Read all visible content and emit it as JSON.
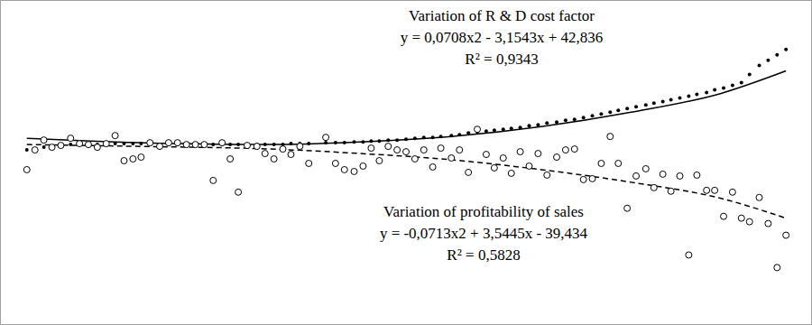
{
  "chart_data": {
    "type": "scatter",
    "xlim": [
      0,
      100
    ],
    "ylim": [
      0,
      360
    ],
    "tick_labels": false,
    "grid": false,
    "series": [
      {
        "type": "scatter",
        "marker": "dot",
        "color": "#000000",
        "x": [
          3.2,
          4.2,
          5.3,
          6.3,
          7.4,
          8.6,
          9.7,
          10.8,
          11.9,
          13,
          14.1,
          15.2,
          16.3,
          17.3,
          18.4,
          19.6,
          20.7,
          21.8,
          22.9,
          24,
          25.1,
          26.2,
          27.3,
          28.3,
          29.3,
          30.4,
          31.6,
          32.6,
          33.7,
          34.8,
          35.8,
          36.9,
          38,
          40.1,
          41.3,
          42.4,
          43.6,
          44.7,
          45.7,
          46.7,
          47.8,
          48.9,
          50,
          51.1,
          52.2,
          53.3,
          54.3,
          55.6,
          56.6,
          57.7,
          58.8,
          59.9,
          60.9,
          62,
          63,
          64.1,
          65.2,
          66.3,
          67.4,
          68.6,
          69.7,
          70.8,
          71.9,
          73,
          74.1,
          75.2,
          76.2,
          77.3,
          78.4,
          79.6,
          80.6,
          81.7,
          82.7,
          83.8,
          84.9,
          85.9,
          87.1,
          88.1,
          89.2,
          90.3,
          91.4,
          92.4,
          93.6,
          94.7,
          95.8,
          96.9
        ],
        "values": [
          194,
          195,
          197,
          198,
          199,
          200,
          200,
          200,
          200,
          201,
          201,
          201,
          201,
          201,
          201,
          200,
          200,
          200,
          200,
          200,
          200,
          200,
          200,
          200,
          200,
          200,
          200,
          200,
          200,
          200,
          201,
          201,
          201,
          202,
          202,
          202,
          203,
          203,
          204,
          204,
          205,
          205,
          206,
          207,
          208,
          208,
          209,
          210,
          211,
          213,
          214,
          215,
          216,
          217,
          218,
          219,
          221,
          222,
          224,
          225,
          227,
          228,
          230,
          232,
          234,
          236,
          238,
          240,
          242,
          244,
          246,
          248,
          250,
          252,
          254,
          256,
          258,
          261,
          263,
          266,
          269,
          278,
          288,
          294,
          300,
          306
        ]
      },
      {
        "type": "scatter",
        "marker": "circle",
        "color": "#000000",
        "x": [
          3.2,
          4.2,
          5.3,
          6.3,
          7.4,
          8.6,
          9.7,
          10.8,
          11.9,
          13,
          14.1,
          15.2,
          16.3,
          17.3,
          18.4,
          19.6,
          20.7,
          21.8,
          22.9,
          24,
          25.1,
          26.2,
          27.3,
          28.3,
          29.3,
          30.4,
          31.6,
          32.6,
          33.7,
          34.8,
          35.8,
          36.9,
          38,
          40.1,
          41.3,
          42.4,
          43.6,
          44.7,
          45.7,
          46.7,
          47.8,
          48.9,
          50,
          51.1,
          52.2,
          53.3,
          54.3,
          55.6,
          56.6,
          57.7,
          58.8,
          59.9,
          60.9,
          62,
          63,
          64.1,
          65.2,
          66.3,
          67.4,
          68.6,
          69.7,
          70.8,
          71.9,
          73,
          74.1,
          75.2,
          76.2,
          77.3,
          78.4,
          79.6,
          80.6,
          81.7,
          82.7,
          83.8,
          84.9,
          85.9,
          87.1,
          88.1,
          89.2,
          90.3,
          91.4,
          92.4,
          93.6,
          94.7,
          95.8,
          96.9
        ],
        "values": [
          172,
          194,
          205,
          197,
          199,
          207,
          201,
          200,
          197,
          201,
          210,
          182,
          184,
          186,
          202,
          198,
          202,
          202,
          200,
          200,
          200,
          160,
          202,
          184,
          147,
          199,
          198,
          190,
          184,
          195,
          189,
          198,
          179,
          208,
          179,
          172,
          170,
          176,
          196,
          182,
          198,
          194,
          192,
          184,
          194,
          175,
          196,
          185,
          194,
          169,
          217,
          189,
          174,
          185,
          168,
          192,
          176,
          190,
          166,
          186,
          194,
          195,
          161,
          162,
          179,
          209,
          179,
          129,
          165,
          173,
          152,
          167,
          148,
          165,
          77,
          166,
          149,
          149,
          120,
          147,
          118,
          114,
          141,
          112,
          63,
          99
        ]
      },
      {
        "type": "line",
        "line_style": "solid",
        "color": "#000000",
        "x": [
          3.2,
          11.1,
          22.2,
          33.3,
          44.4,
          55.6,
          66.7,
          77.8,
          88.9,
          96.9
        ],
        "values": [
          207,
          204,
          201,
          200,
          203,
          209,
          220,
          236,
          257,
          282
        ]
      },
      {
        "type": "line",
        "line_style": "dashed",
        "color": "#000000",
        "x": [
          3.2,
          16.7,
          33.3,
          44.4,
          55.6,
          66.7,
          77.8,
          88.9,
          96.9
        ],
        "values": [
          200,
          198,
          195,
          190,
          183,
          172,
          158,
          140,
          118
        ]
      }
    ],
    "annotations": [
      {
        "lines": [
          "Variation of R & D cost factor",
          "y = 0,0708x2 - 3,1543x + 42,836",
          "R² = 0,9343"
        ]
      },
      {
        "lines": [
          "Variation of profitability of sales",
          "y = -0,0713x2 + 3,5445x - 39,434",
          "R² = 0,5828"
        ]
      }
    ]
  }
}
